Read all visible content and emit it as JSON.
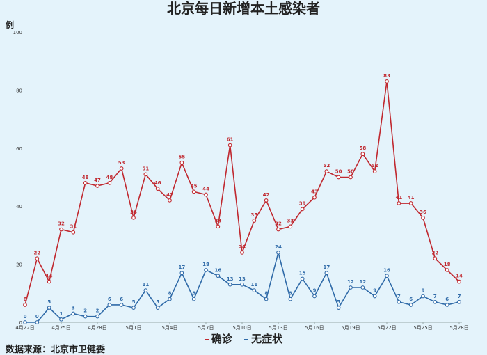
{
  "title": "北京每日新增本土感染者",
  "source": "数据来源：北京市卫健委",
  "chart_data": {
    "type": "line",
    "title": "北京每日新增本土感染者",
    "ylabel": "例",
    "xlabel": "",
    "ylim": [
      0,
      100
    ],
    "yticks": [
      0,
      20,
      40,
      60,
      80,
      100
    ],
    "x": [
      "4月22日",
      "4月23日",
      "4月24日",
      "4月25日",
      "4月26日",
      "4月27日",
      "4月28日",
      "4月29日",
      "4月30日",
      "5月1日",
      "5月2日",
      "5月3日",
      "5月4日",
      "5月5日",
      "5月6日",
      "5月7日",
      "5月8日",
      "5月9日",
      "5月10日",
      "5月11日",
      "5月12日",
      "5月13日",
      "5月14日",
      "5月15日",
      "5月16日",
      "5月17日",
      "5月18日",
      "5月19日",
      "5月20日",
      "5月21日",
      "5月22日",
      "5月23日",
      "5月24日",
      "5月25日",
      "5月26日",
      "5月27日",
      "5月28日"
    ],
    "xtick_labels": [
      "4月22日",
      "4月25日",
      "4月28日",
      "5月1日",
      "5月4日",
      "5月7日",
      "5月10日",
      "5月13日",
      "5月16日",
      "5月19日",
      "5月22日",
      "5月25日",
      "5月28日"
    ],
    "legend_position": "bottom",
    "series": [
      {
        "name": "确诊",
        "color": "#c0282f",
        "values": [
          6,
          22,
          14,
          32,
          31,
          48,
          47,
          48,
          53,
          36,
          51,
          46,
          42,
          55,
          45,
          44,
          33,
          61,
          24,
          35,
          42,
          32,
          33,
          39,
          43,
          52,
          50,
          50,
          58,
          52,
          83,
          41,
          41,
          36,
          22,
          18,
          14
        ]
      },
      {
        "name": "无症状",
        "color": "#2f6aa8",
        "values": [
          0,
          0,
          5,
          1,
          3,
          2,
          2,
          6,
          6,
          5,
          11,
          5,
          8,
          17,
          8,
          18,
          16,
          13,
          13,
          11,
          8,
          24,
          8,
          15,
          9,
          17,
          5,
          12,
          12,
          9,
          16,
          7,
          6,
          9,
          7,
          6,
          7
        ]
      }
    ]
  }
}
